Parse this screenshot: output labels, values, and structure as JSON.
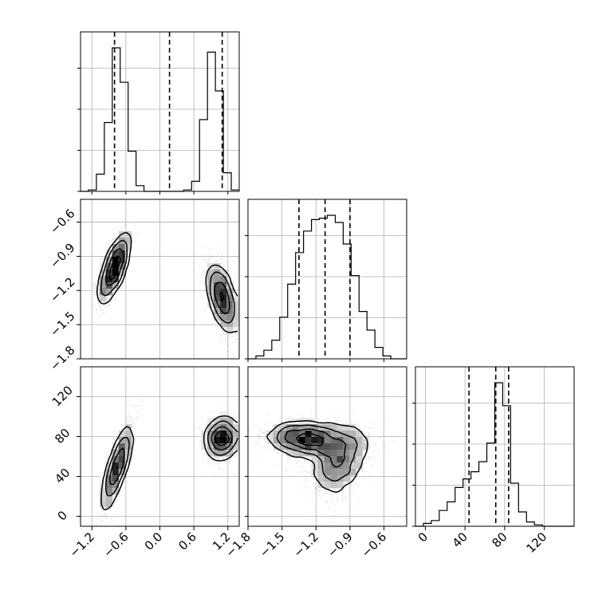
{
  "chart_data": {
    "type": "corner",
    "parameters": [
      "",
      "",
      ""
    ],
    "ranges": [
      [
        -1.4,
        1.4
      ],
      [
        -1.8,
        -0.4
      ],
      [
        -10,
        150
      ]
    ],
    "x_ticks": [
      {
        "values": [
          -1.2,
          -0.6,
          0.0,
          0.6,
          1.2
        ],
        "labels": [
          "−1.2",
          "−0.6",
          "0.0",
          "0.6",
          "1.2"
        ]
      },
      {
        "values": [
          -1.8,
          -1.5,
          -1.2,
          -0.9,
          -0.6
        ],
        "labels": [
          "−1.8",
          "−1.5",
          "−1.2",
          "−0.9",
          "−0.6"
        ]
      },
      {
        "values": [
          0,
          40,
          80,
          120
        ],
        "labels": [
          "0",
          "40",
          "80",
          "120"
        ]
      }
    ],
    "y_ticks": [
      null,
      {
        "values": [
          -1.8,
          -1.5,
          -1.2,
          -0.9,
          -0.6
        ],
        "labels": [
          "−1.8",
          "−1.5",
          "−1.2",
          "−0.9",
          "−0.6"
        ]
      },
      {
        "values": [
          0,
          40,
          80,
          120
        ],
        "labels": [
          "0",
          "40",
          "80",
          "120"
        ]
      }
    ],
    "grid": true,
    "histograms": [
      {
        "param": 0,
        "quantiles": [
          -0.8,
          0.17,
          1.1
        ],
        "bin_edges": [
          -1.4,
          -1.26,
          -1.12,
          -0.98,
          -0.84,
          -0.7,
          -0.56,
          -0.42,
          -0.28,
          -0.14,
          0.0,
          0.14,
          0.28,
          0.42,
          0.56,
          0.7,
          0.84,
          0.98,
          1.12,
          1.26,
          1.4
        ],
        "counts": [
          0,
          1,
          12,
          48,
          100,
          76,
          28,
          4,
          0,
          0,
          0,
          0,
          0,
          1,
          7,
          50,
          97,
          70,
          13,
          1
        ]
      },
      {
        "param": 1,
        "quantiles": [
          -1.35,
          -1.12,
          -0.9
        ],
        "bin_edges": [
          -1.8,
          -1.73,
          -1.66,
          -1.59,
          -1.52,
          -1.45,
          -1.38,
          -1.31,
          -1.24,
          -1.17,
          -1.1,
          -1.03,
          -0.96,
          -0.89,
          -0.82,
          -0.75,
          -0.68,
          -0.61,
          -0.54,
          -0.47,
          -0.4
        ],
        "counts": [
          0,
          2,
          6,
          13,
          29,
          52,
          74,
          89,
          97,
          98,
          100,
          95,
          80,
          58,
          33,
          20,
          8,
          2,
          0,
          0
        ]
      },
      {
        "param": 2,
        "quantiles": [
          44,
          71,
          84
        ],
        "bin_edges": [
          -10,
          -2,
          6,
          14,
          22,
          30,
          38,
          46,
          54,
          62,
          70,
          78,
          86,
          94,
          102,
          110,
          118,
          126,
          134,
          142,
          150
        ],
        "counts": [
          0,
          2,
          4,
          11,
          17,
          27,
          33,
          38,
          45,
          58,
          100,
          84,
          30,
          10,
          3,
          1,
          0,
          0,
          0,
          0
        ]
      }
    ],
    "joint_distributions": [
      {
        "x_param": 0,
        "y_param": 1,
        "clusters": [
          {
            "mean": [
              -0.8,
              -1.0
            ],
            "sd": [
              0.13,
              0.15
            ],
            "rho": 0.75,
            "weight": 0.5
          },
          {
            "mean": [
              1.1,
              -1.27
            ],
            "sd": [
              0.13,
              0.15
            ],
            "rho": -0.55,
            "weight": 0.5
          }
        ]
      },
      {
        "x_param": 0,
        "y_param": 2,
        "clusters": [
          {
            "mean": [
              -0.75,
              50
            ],
            "sd": [
              0.13,
              22
            ],
            "rho": 0.85,
            "weight": 0.5
          },
          {
            "mean": [
              1.1,
              78
            ],
            "sd": [
              0.14,
              10
            ],
            "rho": 0.1,
            "weight": 0.5
          }
        ]
      },
      {
        "x_param": 1,
        "y_param": 2,
        "clusters": [
          {
            "mean": [
              -1.3,
              78
            ],
            "sd": [
              0.17,
              8
            ],
            "rho": -0.1,
            "weight": 0.45
          },
          {
            "mean": [
              -1.0,
              52
            ],
            "sd": [
              0.12,
              17
            ],
            "rho": 0.3,
            "weight": 0.35
          },
          {
            "mean": [
              -1.05,
              72
            ],
            "sd": [
              0.2,
              12
            ],
            "rho": 0.2,
            "weight": 0.2
          }
        ]
      }
    ]
  }
}
